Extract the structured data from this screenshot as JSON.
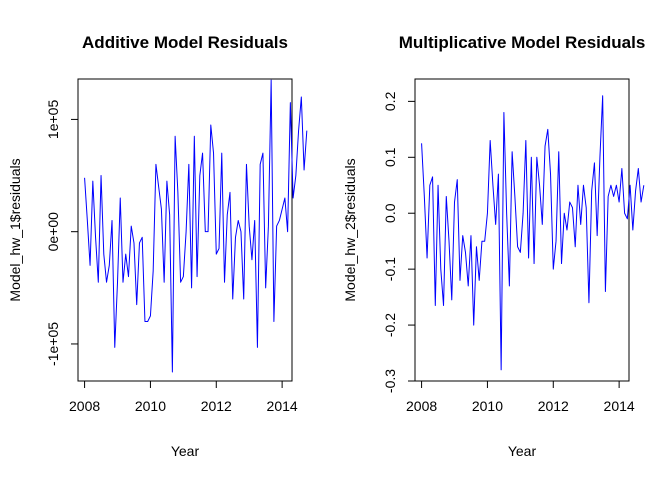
{
  "chart_data": [
    {
      "type": "line",
      "title": "Additive Model Residuals",
      "xlabel": "Year",
      "ylabel": "Model_hw_1$residuals",
      "xlim": [
        2007.8,
        2014.3
      ],
      "ylim": [
        -133000,
        136000
      ],
      "x_ticks": [
        2008,
        2010,
        2012,
        2014
      ],
      "x_tick_labels": [
        "2008",
        "2010",
        "2012",
        "2014"
      ],
      "y_ticks": [
        -100000,
        0,
        100000
      ],
      "y_tick_labels": [
        "-1e+05",
        "0e+00",
        "1e+05"
      ],
      "grid": false,
      "line_color": "#0000ff",
      "series": [
        {
          "x_start": 2008,
          "frequency": 12,
          "values": [
            48000,
            10000,
            -30000,
            45000,
            -5000,
            -45000,
            50000,
            -20000,
            -45000,
            -30000,
            10000,
            -103000,
            -45000,
            30000,
            -45000,
            -20000,
            -40000,
            5000,
            -10000,
            -65000,
            -10000,
            -5000,
            -80000,
            -80000,
            -75000,
            -35000,
            60000,
            40000,
            20000,
            -45000,
            45000,
            15000,
            -125000,
            85000,
            35000,
            -45000,
            -40000,
            0,
            60000,
            -50000,
            85000,
            -40000,
            50000,
            70000,
            0,
            0,
            95000,
            70000,
            -20000,
            -15000,
            70000,
            -45000,
            15000,
            35000,
            -60000,
            -5000,
            10000,
            0,
            -60000,
            60000,
            5000,
            -25000,
            10000,
            -103000,
            60000,
            70000,
            -50000,
            5000,
            135000,
            -80000,
            5000,
            10000,
            20000,
            30000,
            0,
            115000,
            30000,
            50000,
            90000,
            120000,
            55000,
            90000
          ]
        }
      ]
    },
    {
      "type": "line",
      "title": "Multiplicative Model Residuals",
      "xlabel": "Year",
      "ylabel": "Model_hw_2$residuals",
      "xlim": [
        2007.8,
        2014.3
      ],
      "ylim": [
        -0.3,
        0.24
      ],
      "x_ticks": [
        2008,
        2010,
        2012,
        2014
      ],
      "x_tick_labels": [
        "2008",
        "2010",
        "2012",
        "2014"
      ],
      "y_ticks": [
        -0.3,
        -0.2,
        -0.1,
        0.0,
        0.1,
        0.2
      ],
      "y_tick_labels": [
        "-0.3",
        "-0.2",
        "-0.1",
        "0.0",
        "0.1",
        "0.2"
      ],
      "grid": false,
      "line_color": "#0000ff",
      "series": [
        {
          "x_start": 2008,
          "frequency": 12,
          "values": [
            0.125,
            0.03,
            -0.08,
            0.05,
            0.065,
            -0.165,
            0.05,
            -0.1,
            -0.165,
            0.03,
            -0.05,
            -0.155,
            0.02,
            0.06,
            -0.12,
            -0.04,
            -0.07,
            -0.13,
            -0.04,
            -0.2,
            -0.06,
            -0.12,
            -0.05,
            -0.05,
            0.0,
            0.13,
            0.05,
            -0.02,
            0.07,
            -0.28,
            0.18,
            0.0,
            -0.13,
            0.11,
            0.03,
            -0.06,
            -0.07,
            0.0,
            0.13,
            -0.08,
            0.1,
            -0.09,
            0.1,
            0.05,
            -0.02,
            0.12,
            0.15,
            0.07,
            -0.1,
            -0.05,
            0.11,
            -0.09,
            0.0,
            -0.03,
            0.02,
            0.01,
            -0.06,
            0.05,
            -0.02,
            0.05,
            0.01,
            -0.16,
            0.04,
            0.09,
            -0.04,
            0.1,
            0.21,
            -0.14,
            0.03,
            0.05,
            0.03,
            0.05,
            0.02,
            0.08,
            0.0,
            -0.01,
            0.05,
            -0.03,
            0.04,
            0.08,
            0.02,
            0.05
          ]
        }
      ]
    }
  ]
}
